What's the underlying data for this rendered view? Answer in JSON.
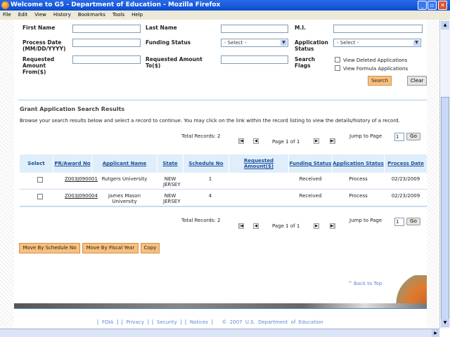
{
  "window": {
    "title": "Welcome to G5 - Department of Education - Mozilla Firefox"
  },
  "menu": [
    "File",
    "Edit",
    "View",
    "History",
    "Bookmarks",
    "Tools",
    "Help"
  ],
  "form": {
    "first_name": "First Name",
    "last_name": "Last Name",
    "mi": "M.I.",
    "process_date": "Process Date (MM/DD/YYYY)",
    "funding_status": "Funding Status",
    "application_status": "Application Status",
    "req_from": "Requested Amount From($)",
    "req_to": "Requested Amount To($)",
    "search_flags": "Search Flags",
    "funding_select": "- Select -",
    "app_select": "- Select -",
    "flag_deleted": "View Deleted Applications",
    "flag_formula": "View Formula Applications",
    "search": "Search",
    "clear": "Clear"
  },
  "results": {
    "title": "Grant Application Search Results",
    "instructions": "Browse your search results below and select a record to continue. You may click on the link within the record listing to view the details/history of a record.",
    "total": "Total Records: 2",
    "page": "Page 1 of 1",
    "jump": "Jump to Page",
    "jump_value": "1",
    "go": "Go",
    "columns": [
      "Select",
      "PR/Award No",
      "Applicant Name",
      "State",
      "Schedule No",
      "Requested Amount($)",
      "Funding Status",
      "Application Status",
      "Process Date"
    ],
    "rows": [
      {
        "award": "Z003J090001",
        "applicant": "Rutgers University",
        "state": "NEW JERSEY",
        "schedule": "1",
        "amount": "",
        "funding": "Received",
        "status": "Process",
        "date": "02/23/2009"
      },
      {
        "award": "Z003J090004",
        "applicant": "James Mason University",
        "state": "NEW JERSEY",
        "schedule": "4",
        "amount": "",
        "funding": "Received",
        "status": "Process",
        "date": "02/23/2009"
      }
    ]
  },
  "actions": {
    "move_schedule": "Move By Schedule No",
    "move_fiscal": "Move By Fiscal Year",
    "copy": "Copy"
  },
  "footer": {
    "back_to_top": "^ Back to Top",
    "links": [
      "[ FOIA ]",
      "[ Privacy ]",
      "[ Security ]",
      "[ Notices ]"
    ],
    "copyright": "© 2007 U.S. Department of Education"
  }
}
